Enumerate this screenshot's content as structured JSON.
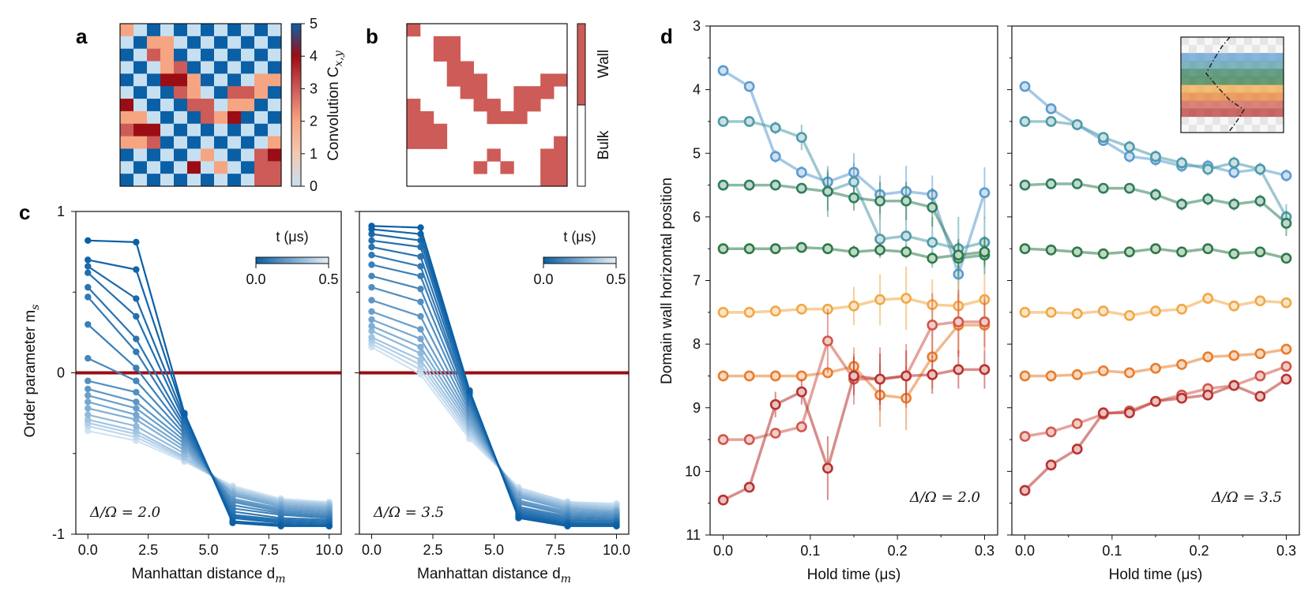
{
  "colors": {
    "blue_dark": "#0b5fa5",
    "blue_light": "#cfe3f3",
    "red_dark": "#9b0d14",
    "salmon": "#f5a582",
    "wall_red": "#cd5b57",
    "series_colors": [
      "#5b9bd0",
      "#4d9aa8",
      "#2f7e5a",
      "#2d7a45",
      "#f0a846",
      "#e87d2c",
      "#d0574a",
      "#b8322e"
    ]
  },
  "panel_a": {
    "letter": "a",
    "colorbar_title": "Convolution C",
    "colorbar_subscript": "x,y",
    "colorbar_ticks": [
      "0",
      "1",
      "2",
      "3",
      "4",
      "5"
    ],
    "noise_seed": 17
  },
  "panel_b": {
    "letter": "b",
    "legend_top": "Wall",
    "legend_bottom": "Bulk",
    "wall_rows": [
      "100000000000",
      "001100000000",
      "001100000000",
      "000110000000",
      "000111000011",
      "000011001110",
      "100001101100",
      "110000111000",
      "111000000000",
      "111000000001",
      "000000100011",
      "000001010011",
      "000000000011"
    ]
  },
  "panel_c": {
    "letter": "c",
    "ylabel": "Order parameter m",
    "ylabel_sub": "s",
    "xlabel": "Manhattan distance d",
    "xlabel_sub": "m",
    "colorbar_label": "t (μs)",
    "colorbar_ticks": [
      "0.0",
      "0.5"
    ],
    "y_ticks": [
      "1",
      "0",
      "-1"
    ],
    "x_ticks": [
      "0.0",
      "2.5",
      "5.0",
      "7.5",
      "10.0"
    ],
    "x": [
      0,
      2,
      4,
      6,
      8,
      10
    ],
    "subplots": [
      {
        "annotation": "Δ/Ω = 2.0",
        "series": [
          {
            "t": 0.0,
            "values": [
              0.82,
              0.81,
              -0.25,
              -0.93,
              -0.95,
              -0.95
            ]
          },
          {
            "t": 0.02,
            "values": [
              0.7,
              0.64,
              -0.26,
              -0.92,
              -0.94,
              -0.95
            ]
          },
          {
            "t": 0.04,
            "values": [
              0.66,
              0.46,
              -0.28,
              -0.9,
              -0.93,
              -0.94
            ]
          },
          {
            "t": 0.06,
            "values": [
              0.62,
              0.35,
              -0.3,
              -0.89,
              -0.92,
              -0.93
            ]
          },
          {
            "t": 0.08,
            "values": [
              0.53,
              0.21,
              -0.32,
              -0.88,
              -0.91,
              -0.92
            ]
          },
          {
            "t": 0.1,
            "values": [
              0.47,
              0.13,
              -0.34,
              -0.86,
              -0.9,
              -0.91
            ]
          },
          {
            "t": 0.12,
            "values": [
              0.3,
              0.03,
              -0.36,
              -0.84,
              -0.88,
              -0.9
            ]
          },
          {
            "t": 0.15,
            "values": [
              0.09,
              -0.05,
              -0.38,
              -0.82,
              -0.87,
              -0.89
            ]
          },
          {
            "t": 0.18,
            "values": [
              -0.05,
              -0.12,
              -0.4,
              -0.8,
              -0.86,
              -0.88
            ]
          },
          {
            "t": 0.21,
            "values": [
              -0.1,
              -0.18,
              -0.42,
              -0.79,
              -0.85,
              -0.87
            ]
          },
          {
            "t": 0.24,
            "values": [
              -0.14,
              -0.22,
              -0.44,
              -0.78,
              -0.84,
              -0.86
            ]
          },
          {
            "t": 0.27,
            "values": [
              -0.18,
              -0.26,
              -0.46,
              -0.76,
              -0.83,
              -0.85
            ]
          },
          {
            "t": 0.3,
            "values": [
              -0.22,
              -0.29,
              -0.48,
              -0.75,
              -0.82,
              -0.84
            ]
          },
          {
            "t": 0.34,
            "values": [
              -0.26,
              -0.33,
              -0.5,
              -0.74,
              -0.81,
              -0.83
            ]
          },
          {
            "t": 0.38,
            "values": [
              -0.29,
              -0.36,
              -0.52,
              -0.73,
              -0.8,
              -0.82
            ]
          },
          {
            "t": 0.42,
            "values": [
              -0.31,
              -0.38,
              -0.53,
              -0.72,
              -0.79,
              -0.81
            ]
          },
          {
            "t": 0.46,
            "values": [
              -0.33,
              -0.4,
              -0.54,
              -0.71,
              -0.79,
              -0.81
            ]
          },
          {
            "t": 0.5,
            "values": [
              -0.36,
              -0.42,
              -0.55,
              -0.7,
              -0.78,
              -0.8
            ]
          }
        ]
      },
      {
        "annotation": "Δ/Ω = 3.5",
        "series": [
          {
            "t": 0.0,
            "values": [
              0.91,
              0.9,
              -0.11,
              -0.9,
              -0.95,
              -0.95
            ]
          },
          {
            "t": 0.02,
            "values": [
              0.89,
              0.86,
              -0.12,
              -0.89,
              -0.94,
              -0.94
            ]
          },
          {
            "t": 0.04,
            "values": [
              0.86,
              0.82,
              -0.13,
              -0.88,
              -0.93,
              -0.94
            ]
          },
          {
            "t": 0.06,
            "values": [
              0.82,
              0.78,
              -0.15,
              -0.87,
              -0.93,
              -0.93
            ]
          },
          {
            "t": 0.08,
            "values": [
              0.78,
              0.72,
              -0.16,
              -0.86,
              -0.92,
              -0.92
            ]
          },
          {
            "t": 0.1,
            "values": [
              0.73,
              0.66,
              -0.18,
              -0.85,
              -0.91,
              -0.92
            ]
          },
          {
            "t": 0.12,
            "values": [
              0.67,
              0.6,
              -0.19,
              -0.84,
              -0.9,
              -0.91
            ]
          },
          {
            "t": 0.15,
            "values": [
              0.6,
              0.52,
              -0.21,
              -0.83,
              -0.89,
              -0.9
            ]
          },
          {
            "t": 0.18,
            "values": [
              0.53,
              0.44,
              -0.23,
              -0.81,
              -0.88,
              -0.89
            ]
          },
          {
            "t": 0.21,
            "values": [
              0.45,
              0.35,
              -0.25,
              -0.8,
              -0.87,
              -0.88
            ]
          },
          {
            "t": 0.24,
            "values": [
              0.38,
              0.27,
              -0.27,
              -0.79,
              -0.86,
              -0.87
            ]
          },
          {
            "t": 0.27,
            "values": [
              0.33,
              0.21,
              -0.29,
              -0.77,
              -0.85,
              -0.86
            ]
          },
          {
            "t": 0.3,
            "values": [
              0.29,
              0.16,
              -0.31,
              -0.76,
              -0.84,
              -0.86
            ]
          },
          {
            "t": 0.34,
            "values": [
              0.26,
              0.12,
              -0.33,
              -0.75,
              -0.83,
              -0.85
            ]
          },
          {
            "t": 0.38,
            "values": [
              0.22,
              0.08,
              -0.35,
              -0.74,
              -0.82,
              -0.84
            ]
          },
          {
            "t": 0.42,
            "values": [
              0.2,
              0.05,
              -0.37,
              -0.73,
              -0.81,
              -0.83
            ]
          },
          {
            "t": 0.46,
            "values": [
              0.18,
              0.02,
              -0.39,
              -0.72,
              -0.8,
              -0.82
            ]
          },
          {
            "t": 0.5,
            "values": [
              0.16,
              -0.01,
              -0.41,
              -0.71,
              -0.8,
              -0.81
            ]
          }
        ]
      }
    ]
  },
  "panel_d": {
    "letter": "d",
    "ylabel": "Domain wall horizontal position",
    "xlabel": "Hold time (μs)",
    "y_ticks": [
      "3",
      "4",
      "5",
      "6",
      "7",
      "8",
      "9",
      "10",
      "11"
    ],
    "x_ticks": [
      "0.0",
      "0.1",
      "0.2",
      "0.3"
    ],
    "ylim": [
      11,
      3
    ],
    "x": [
      0,
      0.03,
      0.06,
      0.09,
      0.12,
      0.15,
      0.18,
      0.21,
      0.24,
      0.27,
      0.3
    ],
    "subplots": [
      {
        "annotation": "Δ/Ω = 2.0",
        "series": [
          {
            "name": "row1",
            "values": [
              3.7,
              3.95,
              5.05,
              5.3,
              5.45,
              5.3,
              5.65,
              5.6,
              5.65,
              6.9,
              5.62
            ],
            "errors": [
              0,
              0,
              0.1,
              0.1,
              0.2,
              0.3,
              0.3,
              0.4,
              0.3,
              0.5,
              0.4
            ]
          },
          {
            "name": "row2",
            "values": [
              4.5,
              4.5,
              4.6,
              4.75,
              5.6,
              5.45,
              6.35,
              6.3,
              6.4,
              6.5,
              6.4
            ],
            "errors": [
              0,
              0,
              0.1,
              0.2,
              0.4,
              0.3,
              0.3,
              0.3,
              0.4,
              0.5,
              0.4
            ]
          },
          {
            "name": "row3",
            "values": [
              5.5,
              5.5,
              5.5,
              5.55,
              5.6,
              5.7,
              5.75,
              5.75,
              5.85,
              6.65,
              6.6
            ],
            "errors": [
              0,
              0,
              0,
              0,
              0.3,
              0.2,
              0.3,
              0.3,
              0.3,
              0.3,
              0.3
            ]
          },
          {
            "name": "row4",
            "values": [
              6.5,
              6.5,
              6.5,
              6.48,
              6.5,
              6.55,
              6.52,
              6.55,
              6.65,
              6.6,
              6.55
            ],
            "errors": [
              0,
              0,
              0,
              0,
              0,
              0.1,
              0.1,
              0.1,
              0.1,
              0.2,
              0.2
            ]
          },
          {
            "name": "row5",
            "values": [
              7.5,
              7.5,
              7.48,
              7.45,
              7.45,
              7.4,
              7.3,
              7.28,
              7.38,
              7.4,
              7.3
            ],
            "errors": [
              0,
              0,
              0,
              0,
              0,
              0.3,
              0.4,
              0.5,
              0.4,
              0.4,
              0.4
            ]
          },
          {
            "name": "row6",
            "values": [
              8.5,
              8.5,
              8.5,
              8.5,
              8.45,
              8.35,
              8.8,
              8.85,
              8.2,
              7.7,
              7.7
            ],
            "errors": [
              0,
              0,
              0,
              0,
              0,
              0.3,
              0.5,
              0.5,
              0.5,
              0.5,
              0.4
            ]
          },
          {
            "name": "row7",
            "values": [
              9.5,
              9.5,
              9.4,
              9.3,
              7.95,
              8.55,
              8.55,
              8.5,
              7.7,
              7.65,
              7.65
            ],
            "errors": [
              0,
              0,
              0,
              0,
              0.5,
              0.4,
              0.5,
              0.5,
              0.5,
              0.5,
              0.4
            ]
          },
          {
            "name": "row8",
            "values": [
              10.45,
              10.25,
              8.95,
              8.75,
              9.95,
              8.5,
              8.55,
              8.5,
              8.48,
              8.4,
              8.4
            ],
            "errors": [
              0,
              0,
              0.2,
              0.2,
              0.5,
              0.3,
              0.4,
              0.4,
              0.3,
              0.3,
              0.3
            ]
          }
        ]
      },
      {
        "annotation": "Δ/Ω = 3.5",
        "series": [
          {
            "name": "row1",
            "values": [
              3.95,
              4.3,
              4.55,
              4.8,
              5.05,
              5.1,
              5.2,
              5.2,
              5.3,
              5.25,
              5.35
            ],
            "errors": [
              0,
              0,
              0,
              0,
              0.1,
              0.1,
              0.1,
              0.1,
              0.1,
              0.1,
              0.1
            ]
          },
          {
            "name": "row2",
            "values": [
              4.5,
              4.5,
              4.55,
              4.75,
              4.9,
              5.05,
              5.15,
              5.25,
              5.15,
              5.25,
              6.0
            ],
            "errors": [
              0,
              0,
              0,
              0,
              0.1,
              0.1,
              0.1,
              0.1,
              0.1,
              0.1,
              0.2
            ]
          },
          {
            "name": "row3",
            "values": [
              5.5,
              5.48,
              5.48,
              5.55,
              5.55,
              5.65,
              5.8,
              5.72,
              5.8,
              5.75,
              6.1
            ],
            "errors": [
              0,
              0,
              0,
              0,
              0,
              0.1,
              0.1,
              0.1,
              0.1,
              0.1,
              0.2
            ]
          },
          {
            "name": "row4",
            "values": [
              6.5,
              6.52,
              6.55,
              6.58,
              6.55,
              6.5,
              6.55,
              6.5,
              6.58,
              6.55,
              6.65
            ],
            "errors": [
              0,
              0,
              0,
              0,
              0,
              0,
              0,
              0,
              0,
              0,
              0
            ]
          },
          {
            "name": "row5",
            "values": [
              7.5,
              7.5,
              7.52,
              7.48,
              7.55,
              7.48,
              7.45,
              7.28,
              7.4,
              7.32,
              7.35
            ],
            "errors": [
              0,
              0,
              0,
              0,
              0,
              0,
              0,
              0,
              0,
              0,
              0
            ]
          },
          {
            "name": "row6",
            "values": [
              8.5,
              8.5,
              8.48,
              8.42,
              8.45,
              8.38,
              8.32,
              8.2,
              8.18,
              8.15,
              8.08
            ],
            "errors": [
              0,
              0,
              0,
              0,
              0,
              0,
              0,
              0,
              0,
              0,
              0
            ]
          },
          {
            "name": "row7",
            "values": [
              9.45,
              9.38,
              9.25,
              9.1,
              9.05,
              8.9,
              8.8,
              8.7,
              8.65,
              8.5,
              8.35
            ],
            "errors": [
              0,
              0,
              0,
              0,
              0,
              0,
              0,
              0,
              0,
              0,
              0
            ]
          },
          {
            "name": "row8",
            "values": [
              10.3,
              9.9,
              9.65,
              9.08,
              9.08,
              8.9,
              8.85,
              8.8,
              8.65,
              8.82,
              8.55
            ],
            "errors": [
              0,
              0,
              0,
              0,
              0,
              0,
              0,
              0,
              0,
              0,
              0
            ]
          }
        ]
      }
    ]
  },
  "chart_data": [
    {
      "type": "heatmap",
      "title": "a",
      "colorbar_label": "Convolution C_{x,y}",
      "range": [
        0,
        5
      ]
    },
    {
      "type": "heatmap",
      "title": "b",
      "categories": [
        "Wall",
        "Bulk"
      ]
    },
    {
      "type": "line",
      "title": "c",
      "xlabel": "Manhattan distance d_m",
      "ylabel": "Order parameter m_s",
      "xlim": [
        -0.5,
        10.5
      ],
      "ylim": [
        -1,
        1
      ],
      "panels": [
        "Δ/Ω = 2.0",
        "Δ/Ω = 3.5"
      ],
      "series_source": "panel_c.subplots"
    },
    {
      "type": "line",
      "title": "d",
      "xlabel": "Hold time (μs)",
      "ylabel": "Domain wall horizontal position",
      "xlim": [
        -0.015,
        0.315
      ],
      "ylim": [
        11,
        3
      ],
      "panels": [
        "Δ/Ω = 2.0",
        "Δ/Ω = 3.5"
      ],
      "series_source": "panel_d.subplots"
    }
  ]
}
